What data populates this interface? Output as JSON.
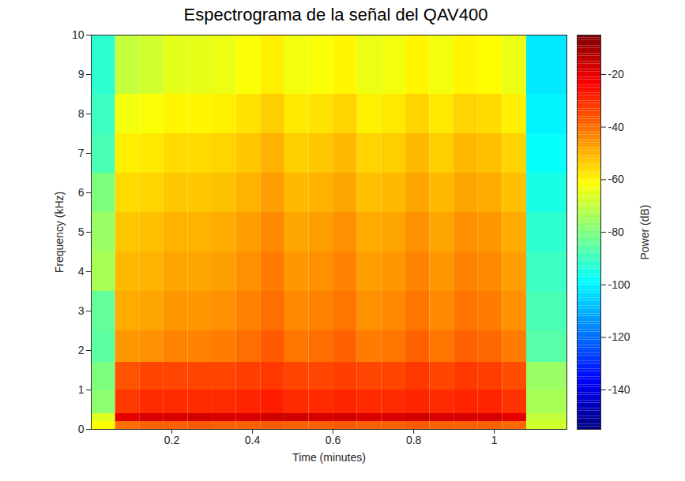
{
  "chart_data": {
    "type": "heatmap",
    "title": "Espectrograma de la señal del QAV400",
    "x_label": "Time (minutes)",
    "y_label": "Frequency (kHz)",
    "xlim": [
      0,
      1.18
    ],
    "xticks": [
      0.2,
      0.4,
      0.6,
      0.8,
      1
    ],
    "ylim": [
      0,
      10
    ],
    "yticks": [
      0,
      1,
      2,
      3,
      4,
      5,
      6,
      7,
      8,
      9,
      10
    ],
    "grid": false,
    "x_edges": [
      0,
      0.06,
      0.12,
      0.18,
      0.24,
      0.3,
      0.36,
      0.42,
      0.48,
      0.54,
      0.6,
      0.66,
      0.72,
      0.78,
      0.84,
      0.9,
      0.96,
      1.02,
      1.08,
      1.18
    ],
    "y_edges": [
      0,
      0.2,
      0.4,
      1,
      1.7,
      2.5,
      3.5,
      4.5,
      5.5,
      6.5,
      7.5,
      8.5,
      10
    ],
    "z": [
      [
        -62,
        -40,
        -38,
        -38,
        -37,
        -38,
        -38,
        -37,
        -38,
        -38,
        -37,
        -38,
        -38,
        -37,
        -38,
        -38,
        -38,
        -39,
        -68
      ],
      [
        -66,
        -20,
        -18,
        -18,
        -17,
        -18,
        -18,
        -17,
        -17,
        -18,
        -17,
        -18,
        -18,
        -17,
        -18,
        -18,
        -18,
        -20,
        -70
      ],
      [
        -78,
        -32,
        -30,
        -30,
        -30,
        -30,
        -29,
        -28,
        -30,
        -30,
        -29,
        -30,
        -30,
        -29,
        -30,
        -29,
        -29,
        -31,
        -74
      ],
      [
        -80,
        -36,
        -34,
        -34,
        -34,
        -34,
        -33,
        -32,
        -34,
        -34,
        -33,
        -34,
        -34,
        -32,
        -34,
        -32,
        -33,
        -35,
        -76
      ],
      [
        -85,
        -46,
        -45,
        -43,
        -43,
        -42,
        -40,
        -37,
        -41,
        -40,
        -38,
        -42,
        -41,
        -38,
        -41,
        -38,
        -39,
        -42,
        -86
      ],
      [
        -84,
        -49,
        -48,
        -46,
        -46,
        -45,
        -43,
        -40,
        -44,
        -43,
        -41,
        -45,
        -44,
        -41,
        -44,
        -41,
        -42,
        -45,
        -88
      ],
      [
        -74,
        -51,
        -50,
        -48,
        -48,
        -47,
        -45,
        -42,
        -46,
        -45,
        -43,
        -47,
        -46,
        -43,
        -46,
        -43,
        -44,
        -47,
        -90
      ],
      [
        -76,
        -53,
        -52,
        -50,
        -50,
        -49,
        -47,
        -44,
        -48,
        -47,
        -45,
        -49,
        -48,
        -45,
        -48,
        -45,
        -46,
        -49,
        -92
      ],
      [
        -80,
        -56,
        -55,
        -53,
        -53,
        -52,
        -50,
        -47,
        -51,
        -50,
        -48,
        -52,
        -51,
        -48,
        -51,
        -48,
        -49,
        -52,
        -95
      ],
      [
        -88,
        -59,
        -58,
        -56,
        -56,
        -55,
        -53,
        -50,
        -54,
        -53,
        -51,
        -55,
        -54,
        -51,
        -54,
        -51,
        -52,
        -55,
        -98
      ],
      [
        -90,
        -63,
        -62,
        -60,
        -60,
        -59,
        -57,
        -54,
        -58,
        -57,
        -55,
        -59,
        -58,
        -55,
        -58,
        -55,
        -56,
        -59,
        -100
      ],
      [
        -92,
        -70,
        -68,
        -65,
        -65,
        -64,
        -62,
        -59,
        -63,
        -62,
        -60,
        -64,
        -63,
        -60,
        -63,
        -60,
        -61,
        -64,
        -102
      ]
    ],
    "colorbar_label": "Power (dB)",
    "colorbar_lim": [
      -155,
      -5
    ],
    "colorbar_ticks": [
      -140,
      -120,
      -100,
      -80,
      -60,
      -40,
      -20
    ]
  }
}
